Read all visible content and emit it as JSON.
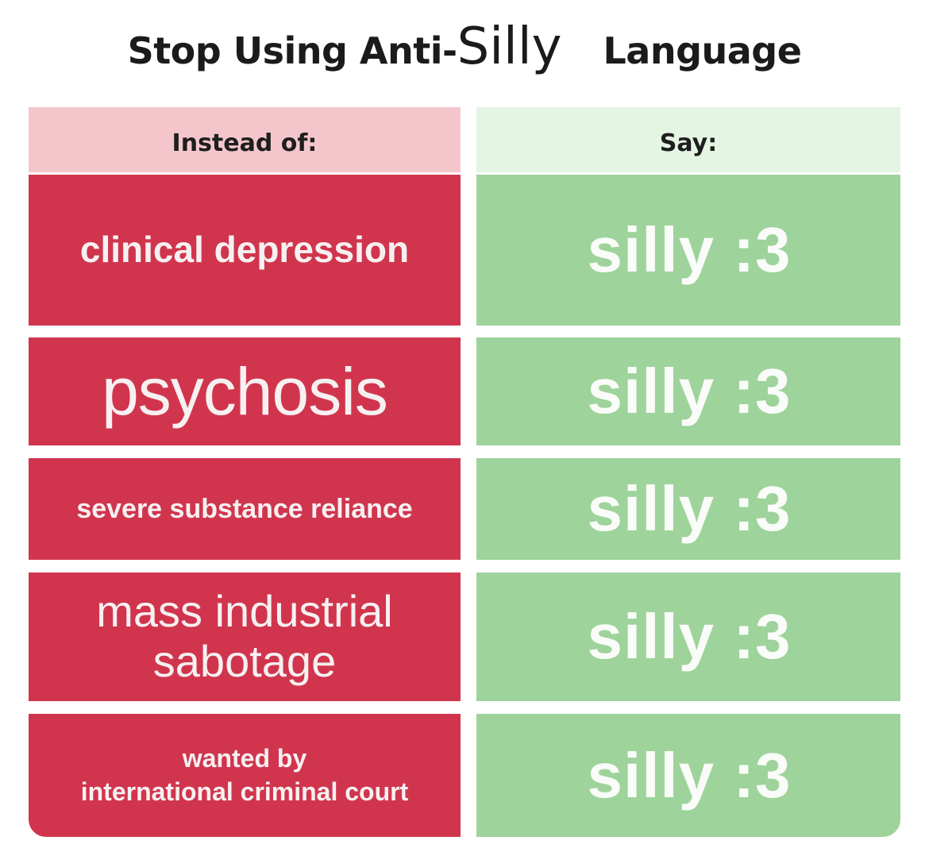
{
  "title": {
    "part1": "Stop Using Anti-",
    "part2": "Silly",
    "part3": "Language"
  },
  "table": {
    "header_left": "Instead of:",
    "header_right": "Say:",
    "rows": [
      {
        "instead": "clinical depression",
        "say": "silly :3"
      },
      {
        "instead": "psychosis",
        "say": "silly :3"
      },
      {
        "instead": "severe substance reliance",
        "say": "silly :3"
      },
      {
        "instead_line1": "mass industrial",
        "instead_line2": "sabotage",
        "say": "silly :3"
      },
      {
        "instead_line1": "wanted by",
        "instead_line2": "international criminal court",
        "say": "silly :3"
      }
    ]
  },
  "colors": {
    "header_left_bg": "#f4c6cc",
    "header_right_bg": "#e4f5e4",
    "instead_bg": "#d1354e",
    "say_bg": "#9ed39b"
  }
}
